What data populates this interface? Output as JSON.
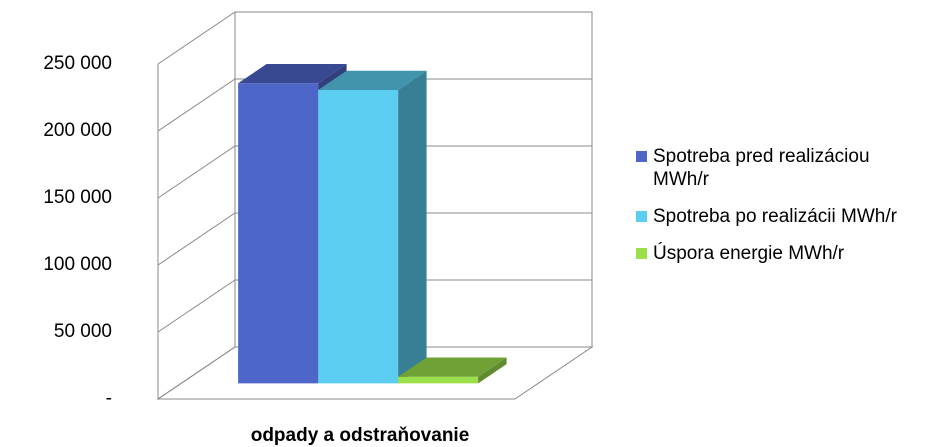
{
  "chart_data": {
    "type": "bar3d",
    "categories": [
      "odpady a odstraňovanie"
    ],
    "series": [
      {
        "name": "Spotreba pred realizáciou MWh/r",
        "color": "#4f66c9",
        "values": [
          224000
        ]
      },
      {
        "name": "Spotreba po realizácii MWh/r",
        "color": "#5bcdf0",
        "values": [
          219000
        ]
      },
      {
        "name": "Úspora energie MWh/r",
        "color": "#9be04a",
        "values": [
          5000
        ]
      }
    ],
    "ylim": [
      0,
      250000
    ],
    "yticks": [
      {
        "value": 0,
        "label": "-"
      },
      {
        "value": 50000,
        "label": "50 000"
      },
      {
        "value": 100000,
        "label": "100 000"
      },
      {
        "value": 150000,
        "label": "150 000"
      },
      {
        "value": 200000,
        "label": "200 000"
      },
      {
        "value": 250000,
        "label": "250 000"
      }
    ],
    "grid": true
  }
}
